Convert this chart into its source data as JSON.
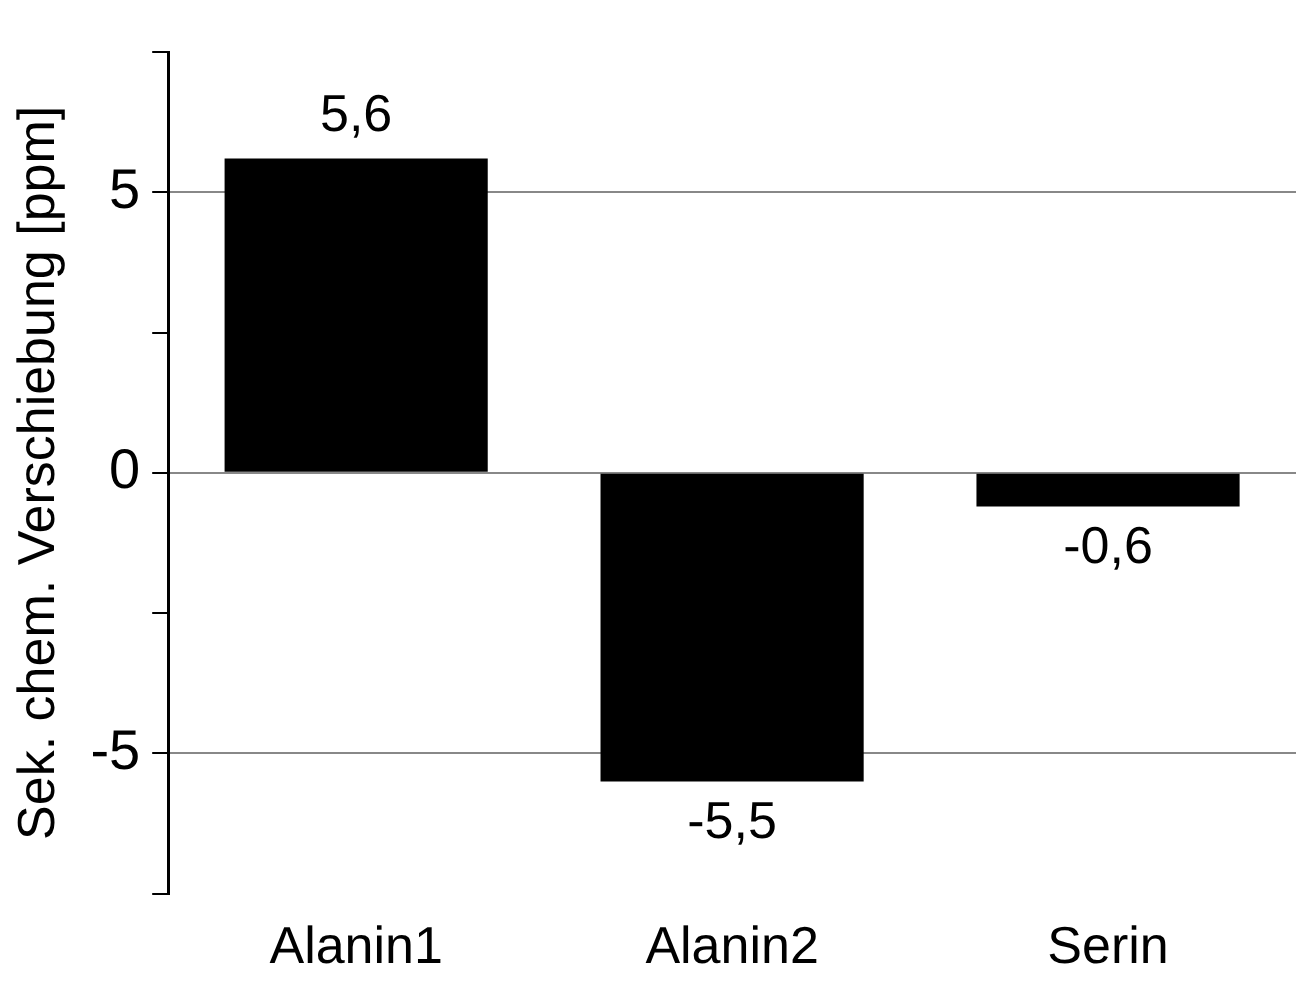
{
  "chart_data": {
    "type": "bar",
    "ylabel": "Sek. chem. Verschiebung [ppm]",
    "categories": [
      "Alanin1",
      "Alanin2",
      "Serin"
    ],
    "values": [
      5.6,
      -5.5,
      -0.6
    ],
    "value_labels": [
      "5,6",
      "-5,5",
      "-0,6"
    ],
    "color": "#000000",
    "ylim": [
      -7.5,
      7.5
    ],
    "yticks": [
      {
        "value": -7.5,
        "label": null
      },
      -5,
      {
        "value": -2.5,
        "label": null
      },
      0,
      {
        "value": 2.5,
        "label": null
      },
      5,
      {
        "value": 7.5,
        "label": null
      }
    ],
    "grid": "y"
  }
}
